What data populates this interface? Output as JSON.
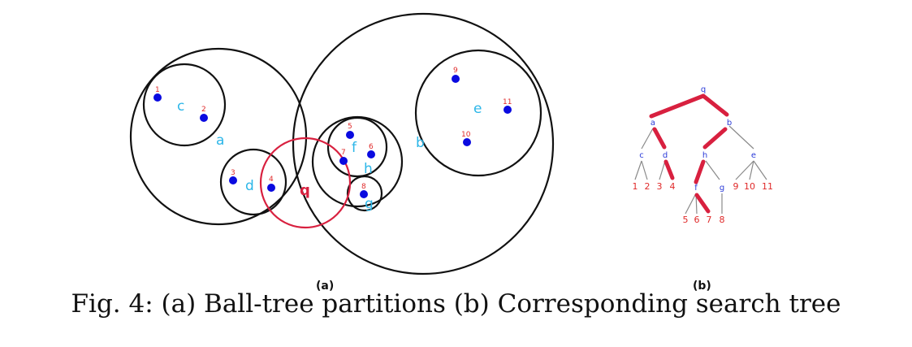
{
  "panel_a": {
    "balls": [
      {
        "label": "a"
      },
      {
        "label": "b"
      },
      {
        "label": "c"
      },
      {
        "label": "d"
      },
      {
        "label": "e"
      },
      {
        "label": "f"
      },
      {
        "label": "g"
      },
      {
        "label": "h"
      }
    ],
    "query": {
      "label": "q"
    },
    "points": [
      "1",
      "2",
      "3",
      "4",
      "5",
      "6",
      "7",
      "8",
      "9",
      "10",
      "11"
    ],
    "sublabel": "(a)"
  },
  "panel_b": {
    "root": "q",
    "internal_nodes": [
      "a",
      "b",
      "c",
      "d",
      "h",
      "e",
      "f",
      "g"
    ],
    "leaves": [
      "1",
      "2",
      "3",
      "4",
      "9",
      "10",
      "11",
      "5",
      "6",
      "7",
      "8"
    ],
    "sublabel": "(b)"
  },
  "caption": "Fig. 4: (a) Ball-tree partitions (b) Corresponding search tree",
  "colors": {
    "ball_outline": "#111111",
    "query_ball": "#d8203f",
    "point": "#0a0ae0",
    "point_label": "#e02a2a",
    "ball_label": "#2cb6e8",
    "tree_node_label": "#2a3ad8",
    "search_path": "#d8203f",
    "tree_edge": "#8a8a8a"
  }
}
